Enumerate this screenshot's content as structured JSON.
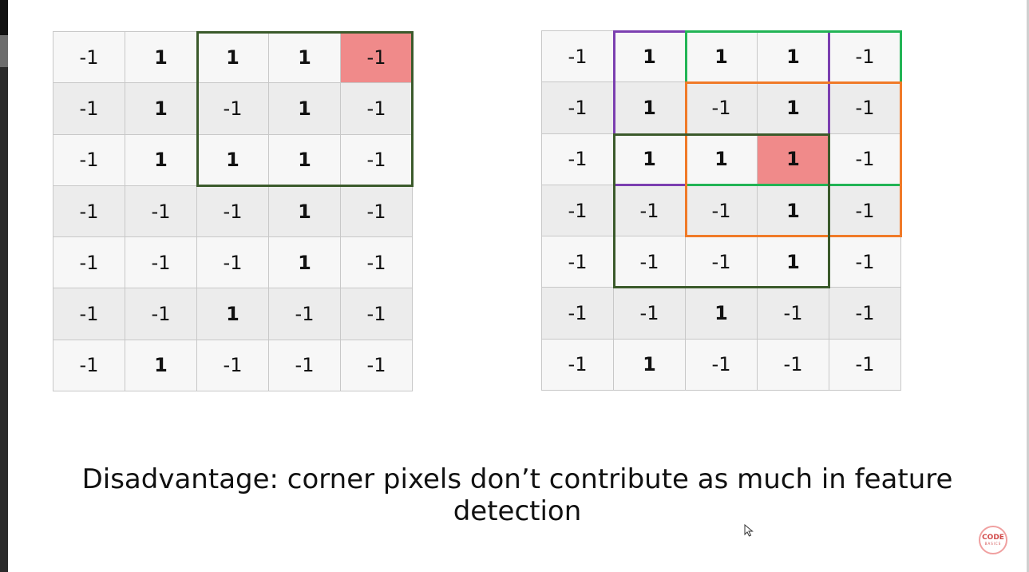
{
  "left_grid": {
    "rows": [
      [
        "-1",
        "1",
        "1",
        "1",
        "-1"
      ],
      [
        "-1",
        "1",
        "-1",
        "1",
        "-1"
      ],
      [
        "-1",
        "1",
        "1",
        "1",
        "-1"
      ],
      [
        "-1",
        "-1",
        "-1",
        "1",
        "-1"
      ],
      [
        "-1",
        "-1",
        "-1",
        "1",
        "-1"
      ],
      [
        "-1",
        "-1",
        "1",
        "-1",
        "-1"
      ],
      [
        "-1",
        "1",
        "-1",
        "-1",
        "-1"
      ]
    ],
    "highlight_cell": {
      "row": 0,
      "col": 4
    },
    "windows": [
      {
        "row": 0,
        "col": 2,
        "size": 3,
        "color": "#3b5a2b"
      }
    ]
  },
  "right_grid": {
    "rows": [
      [
        "-1",
        "1",
        "1",
        "1",
        "-1"
      ],
      [
        "-1",
        "1",
        "-1",
        "1",
        "-1"
      ],
      [
        "-1",
        "1",
        "1",
        "1",
        "-1"
      ],
      [
        "-1",
        "-1",
        "-1",
        "1",
        "-1"
      ],
      [
        "-1",
        "-1",
        "-1",
        "1",
        "-1"
      ],
      [
        "-1",
        "-1",
        "1",
        "-1",
        "-1"
      ],
      [
        "-1",
        "1",
        "-1",
        "-1",
        "-1"
      ]
    ],
    "highlight_cell": {
      "row": 2,
      "col": 3
    },
    "windows": [
      {
        "row": 0,
        "col": 1,
        "size": 3,
        "color": "#7b3fb0"
      },
      {
        "row": 0,
        "col": 2,
        "size": 3,
        "color": "#22b455"
      },
      {
        "row": 1,
        "col": 2,
        "size": 3,
        "color": "#f07a28"
      },
      {
        "row": 2,
        "col": 1,
        "size": 3,
        "color": "#3b5a2b"
      }
    ]
  },
  "caption": {
    "line1": "Disadvantage: corner pixels don’t contribute as much in feature",
    "line2": "detection"
  },
  "logo": {
    "line1": "CODE",
    "line2": "BASICS"
  },
  "colors": {
    "highlight": "#f08a8a",
    "grid_line": "#c8c8c8"
  }
}
